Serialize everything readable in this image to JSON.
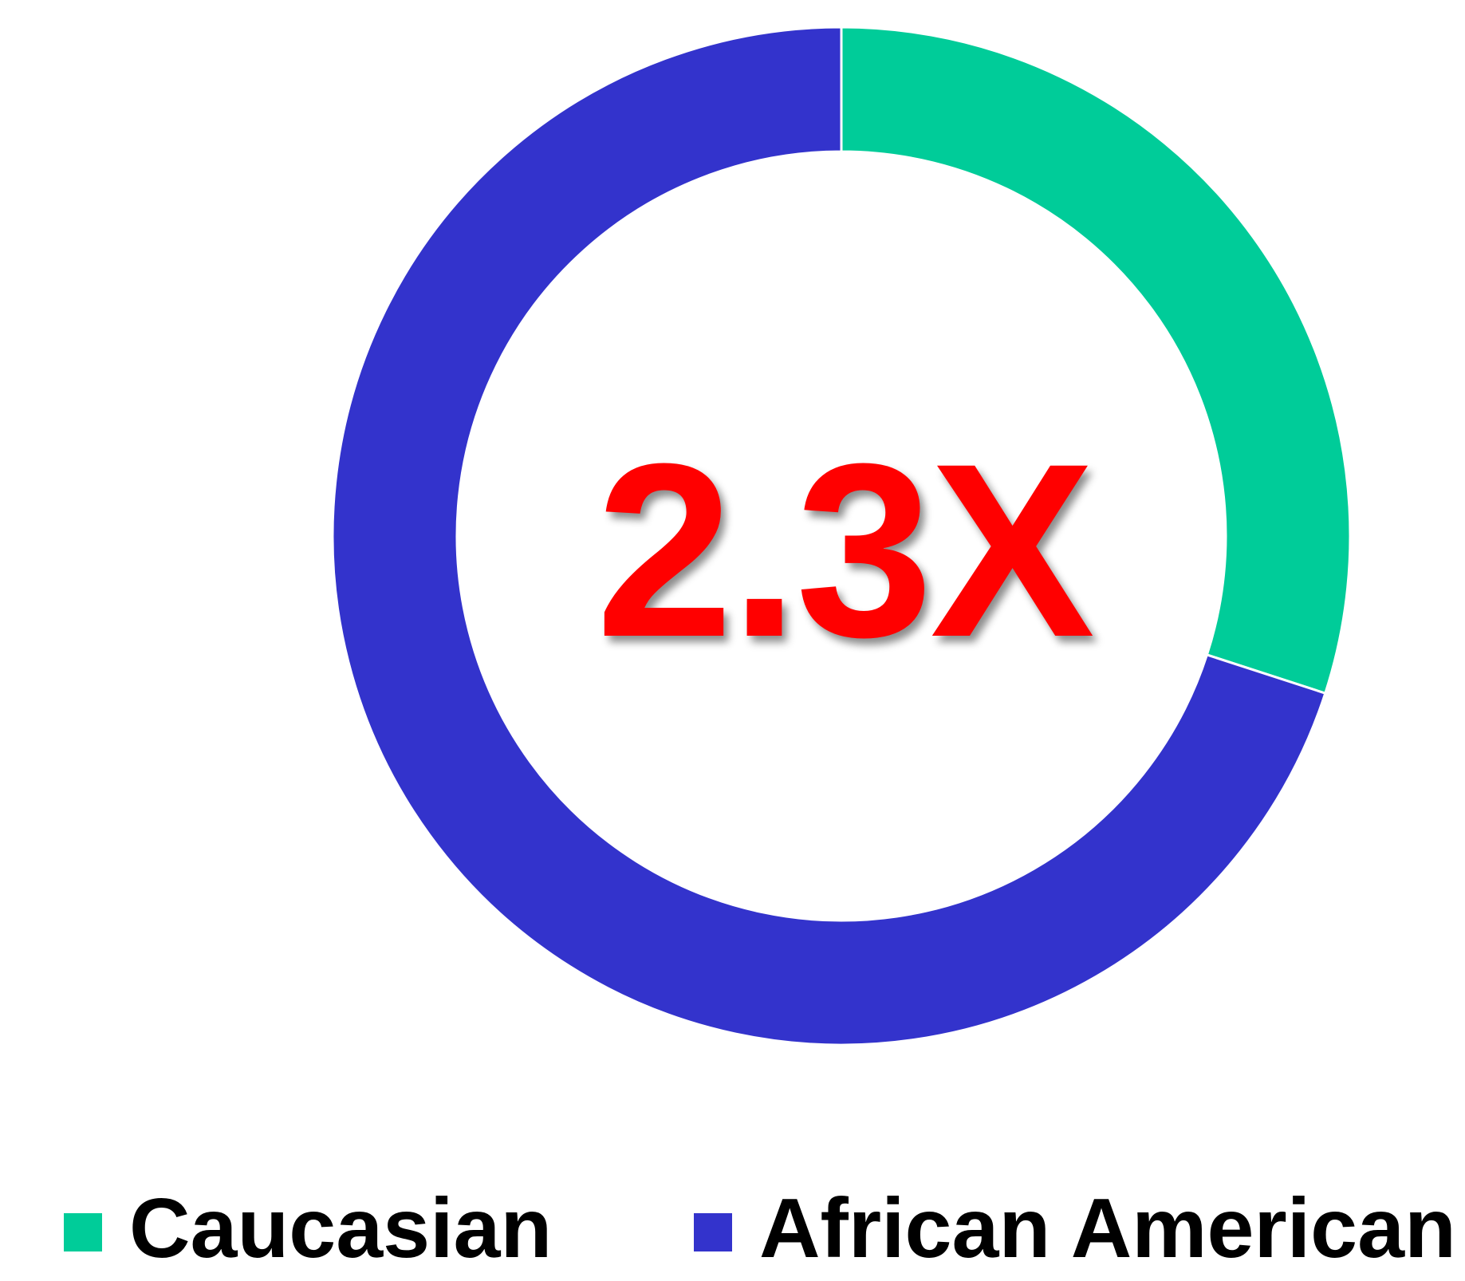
{
  "chart_data": {
    "type": "pie",
    "title": "",
    "center_annotation": "2.3X",
    "categories": [
      "Caucasian",
      "African American"
    ],
    "values": [
      30,
      70
    ],
    "colors": [
      "#00cc99",
      "#3333cc"
    ],
    "annotation_color": "#ff0000",
    "legend_placement": "bottom"
  }
}
